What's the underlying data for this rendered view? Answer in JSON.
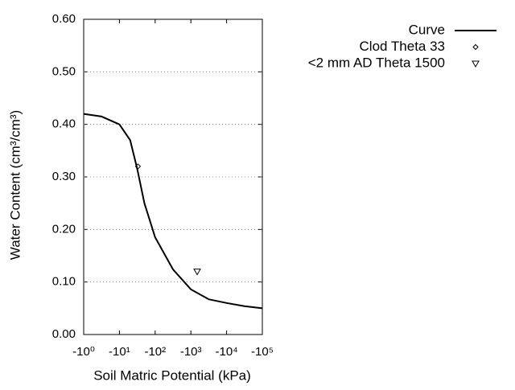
{
  "chart_data": {
    "type": "line",
    "x_label": "Soil Matric Potential (kPa)",
    "y_label": "Water Content (cm³/cm³)",
    "xscale": "log",
    "xlim": [
      -1,
      -100000
    ],
    "xticks": [
      {
        "value": -1,
        "label": "-10⁰"
      },
      {
        "value": -10,
        "label": "-10¹"
      },
      {
        "value": -100,
        "label": "-10²"
      },
      {
        "value": -1000,
        "label": "-10³"
      },
      {
        "value": -10000,
        "label": "-10⁴"
      },
      {
        "value": -100000,
        "label": "-10⁵"
      }
    ],
    "ylim": [
      0,
      0.6
    ],
    "yticks": [
      {
        "value": 0,
        "label": "0.00"
      },
      {
        "value": 0.1,
        "label": "0.10"
      },
      {
        "value": 0.2,
        "label": "0.20"
      },
      {
        "value": 0.3,
        "label": "0.30"
      },
      {
        "value": 0.4,
        "label": "0.40"
      },
      {
        "value": 0.5,
        "label": "0.50"
      },
      {
        "value": 0.6,
        "label": "0.60"
      }
    ],
    "grid": true,
    "legend": "top-right",
    "series": [
      {
        "name": "Curve",
        "color": "#000000",
        "marker": "line",
        "x": [
          -1,
          -3.16,
          -10,
          -20,
          -31.6,
          -50,
          -100,
          -316,
          -1000,
          -3162,
          -10000,
          -31623,
          -100000
        ],
        "values": [
          0.42,
          0.415,
          0.4,
          0.37,
          0.315,
          0.25,
          0.185,
          0.124,
          0.086,
          0.067,
          0.06,
          0.054,
          0.05
        ]
      },
      {
        "name": "Clod Theta 33",
        "color": "#000000",
        "marker": "diamond",
        "x": [
          -33
        ],
        "values": [
          0.32
        ]
      },
      {
        "name": "<2 mm AD Theta 1500",
        "color": "#000000",
        "marker": "triangle",
        "x": [
          -1500
        ],
        "values": [
          0.12
        ]
      }
    ]
  }
}
